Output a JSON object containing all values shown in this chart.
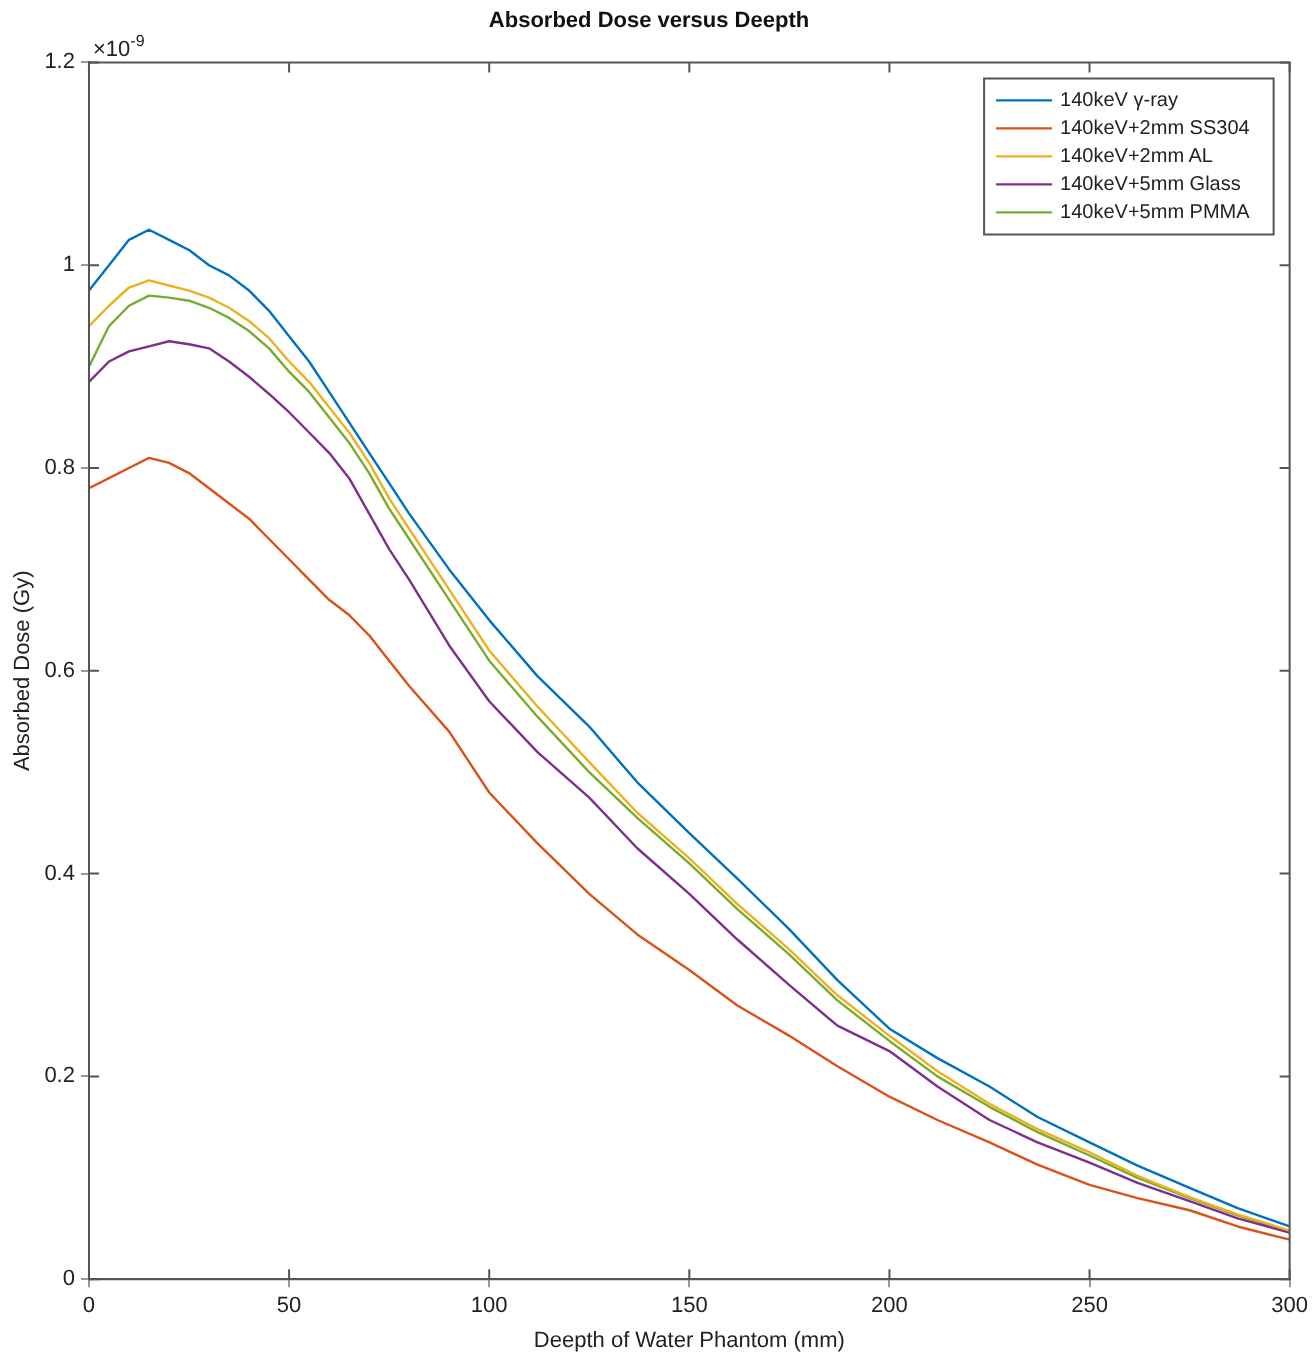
{
  "chart_data": {
    "type": "line",
    "title": "Absorbed Dose versus Deepth",
    "xlabel": "Deepth of Water Phantom (mm)",
    "ylabel": "Absorbed Dose (Gy)",
    "annotations": [
      "×10$^{-9}$"
    ],
    "x": [
      0,
      5,
      10,
      15,
      20,
      25,
      30,
      35,
      40,
      45,
      50,
      55,
      60,
      65,
      70,
      75,
      80,
      90,
      100,
      112,
      125,
      137,
      150,
      162,
      175,
      187,
      200,
      212,
      225,
      237,
      250,
      262,
      275,
      287,
      300
    ],
    "series": [
      {
        "name": "140keV γ-ray",
        "color": "#0072bd",
        "values": [
          0.975,
          1.0,
          1.025,
          1.035,
          1.025,
          1.015,
          1.0,
          0.99,
          0.975,
          0.955,
          0.93,
          0.905,
          0.875,
          0.845,
          0.815,
          0.785,
          0.755,
          0.7,
          0.65,
          0.595,
          0.545,
          0.49,
          0.44,
          0.395,
          0.345,
          0.295,
          0.247,
          0.218,
          0.19,
          0.16,
          0.135,
          0.112,
          0.09,
          0.07,
          0.052
        ]
      },
      {
        "name": "140keV+2mm SS304",
        "color": "#d95319",
        "values": [
          0.78,
          0.79,
          0.8,
          0.81,
          0.805,
          0.795,
          0.78,
          0.765,
          0.75,
          0.73,
          0.71,
          0.69,
          0.67,
          0.655,
          0.635,
          0.61,
          0.585,
          0.54,
          0.48,
          0.43,
          0.38,
          0.34,
          0.305,
          0.27,
          0.24,
          0.21,
          0.18,
          0.157,
          0.135,
          0.113,
          0.093,
          0.08,
          0.068,
          0.052,
          0.039
        ]
      },
      {
        "name": "140keV+2mm AL",
        "color": "#edb120",
        "values": [
          0.94,
          0.96,
          0.978,
          0.985,
          0.98,
          0.975,
          0.968,
          0.958,
          0.945,
          0.928,
          0.905,
          0.885,
          0.86,
          0.835,
          0.805,
          0.77,
          0.74,
          0.68,
          0.62,
          0.565,
          0.51,
          0.46,
          0.415,
          0.37,
          0.325,
          0.28,
          0.24,
          0.205,
          0.173,
          0.148,
          0.125,
          0.102,
          0.081,
          0.064,
          0.048
        ]
      },
      {
        "name": "140keV+5mm Glass",
        "color": "#7e2f8e",
        "values": [
          0.885,
          0.905,
          0.915,
          0.92,
          0.925,
          0.922,
          0.918,
          0.905,
          0.89,
          0.873,
          0.855,
          0.835,
          0.815,
          0.79,
          0.755,
          0.72,
          0.69,
          0.625,
          0.57,
          0.52,
          0.475,
          0.425,
          0.38,
          0.335,
          0.29,
          0.25,
          0.225,
          0.19,
          0.157,
          0.135,
          0.115,
          0.095,
          0.077,
          0.06,
          0.046
        ]
      },
      {
        "name": "140keV+5mm PMMA",
        "color": "#77ac30",
        "values": [
          0.9,
          0.94,
          0.96,
          0.97,
          0.968,
          0.965,
          0.958,
          0.948,
          0.935,
          0.918,
          0.895,
          0.875,
          0.85,
          0.825,
          0.795,
          0.76,
          0.73,
          0.67,
          0.61,
          0.555,
          0.5,
          0.455,
          0.41,
          0.365,
          0.32,
          0.275,
          0.235,
          0.2,
          0.17,
          0.145,
          0.122,
          0.1,
          0.08,
          0.063,
          0.047
        ]
      }
    ],
    "xlim": [
      0,
      300
    ],
    "xticks": [
      0,
      50,
      100,
      150,
      200,
      250,
      300
    ],
    "ylim": [
      0,
      1.2
    ],
    "yticks": [
      0,
      0.2,
      0.4,
      0.6,
      0.8,
      1,
      1.2
    ],
    "grid": false,
    "legend": "top right",
    "marker": "none",
    "line_style": "solid"
  }
}
